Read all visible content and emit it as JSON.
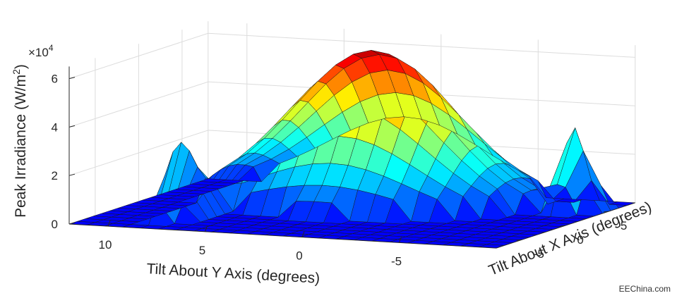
{
  "chart_data": {
    "type": "surface3d",
    "title": "",
    "xlabel": "Tilt About X Axis (degrees)",
    "ylabel": "Tilt About Y Axis (degrees)",
    "zlabel": "Peak Irradiance (W/m",
    "zlabel_sup": "2",
    "zlabel_close": ")",
    "z_exponent_label": "×10",
    "z_exponent_sup": "4",
    "x_ticks": [
      {
        "value": 5,
        "label": "5"
      },
      {
        "value": 0,
        "label": "0"
      },
      {
        "value": -5,
        "label": "-5"
      }
    ],
    "y_ticks": [
      {
        "value": 10,
        "label": "10"
      },
      {
        "value": 5,
        "label": "5"
      },
      {
        "value": 0,
        "label": "0"
      },
      {
        "value": -5,
        "label": "-5"
      }
    ],
    "z_ticks": [
      {
        "value": 0,
        "label": "0"
      },
      {
        "value": 2,
        "label": "2"
      },
      {
        "value": 4,
        "label": "4"
      },
      {
        "value": 6,
        "label": "6"
      }
    ],
    "x_range": [
      -8,
      8
    ],
    "y_range": [
      -10,
      12
    ],
    "z_range": [
      0,
      6.5
    ],
    "grid": true,
    "colormap": "jet",
    "note": ""
  },
  "watermark": "EEChina.com"
}
